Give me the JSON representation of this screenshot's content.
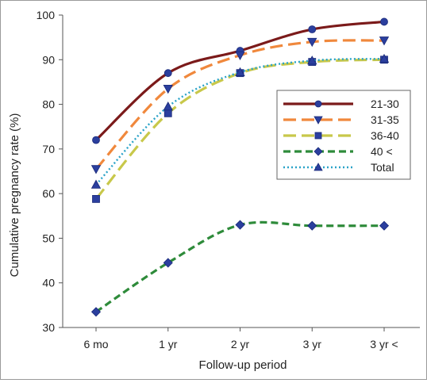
{
  "chart_data": {
    "type": "line",
    "title": "",
    "xlabel": "Follow-up period",
    "ylabel": "Cumulative pregnancy rate (%)",
    "categories": [
      "6 mo",
      "1 yr",
      "2 yr",
      "3 yr",
      "3 yr <"
    ],
    "ylim": [
      30,
      100
    ],
    "yticks": [
      30,
      40,
      50,
      60,
      70,
      80,
      90,
      100
    ],
    "grid": false,
    "legend_position": "right",
    "series": [
      {
        "name": "21-30",
        "values": [
          72,
          87,
          92,
          96.8,
          98.5
        ],
        "color": "#7b1a1a",
        "dash": "solid",
        "marker": "circle"
      },
      {
        "name": "31-35",
        "values": [
          65.5,
          83.5,
          91,
          94,
          94.3
        ],
        "color": "#f0883c",
        "dash": "long-dash",
        "marker": "triangle-down"
      },
      {
        "name": "36-40",
        "values": [
          58.8,
          78,
          87,
          89.5,
          90
        ],
        "color": "#c8c84a",
        "dash": "long-dash",
        "marker": "square"
      },
      {
        "name": "40 <",
        "values": [
          33.5,
          44.5,
          53,
          52.8,
          52.8
        ],
        "color": "#2e8b3a",
        "dash": "dash",
        "marker": "diamond"
      },
      {
        "name": "Total",
        "values": [
          62,
          79.5,
          87.2,
          89.8,
          90.2
        ],
        "color": "#2aa3c8",
        "dash": "dot",
        "marker": "triangle-up"
      }
    ]
  }
}
